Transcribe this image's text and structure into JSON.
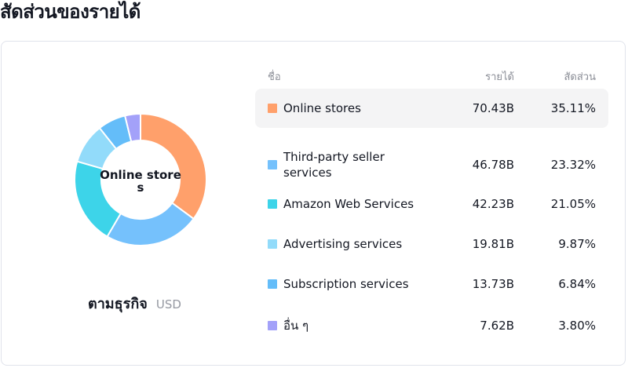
{
  "title": "สัดส่วนของรายได้",
  "donut": {
    "center_label": "Online stores",
    "caption_main": "ตามธุรกิจ",
    "caption_unit": "USD"
  },
  "table": {
    "headers": {
      "name": "ชื่อ",
      "revenue": "รายได้",
      "share": "สัดส่วน"
    }
  },
  "chart_data": {
    "type": "pie",
    "categories": [
      "Online stores",
      "Third-party seller services",
      "Amazon Web Services",
      "Advertising services",
      "Subscription services",
      "อื่น ๆ"
    ],
    "values": [
      70.43,
      46.78,
      42.23,
      19.81,
      13.73,
      7.62
    ],
    "revenue_labels": [
      "70.43B",
      "46.78B",
      "42.23B",
      "19.81B",
      "13.73B",
      "7.62B"
    ],
    "share_labels": [
      "35.11%",
      "23.32%",
      "21.05%",
      "9.87%",
      "6.84%",
      "3.80%"
    ],
    "colors": [
      "#ffa06b",
      "#75c1fc",
      "#3dd4e9",
      "#92dbfa",
      "#64bdf9",
      "#a3a1f9"
    ],
    "highlighted": "Online stores"
  }
}
